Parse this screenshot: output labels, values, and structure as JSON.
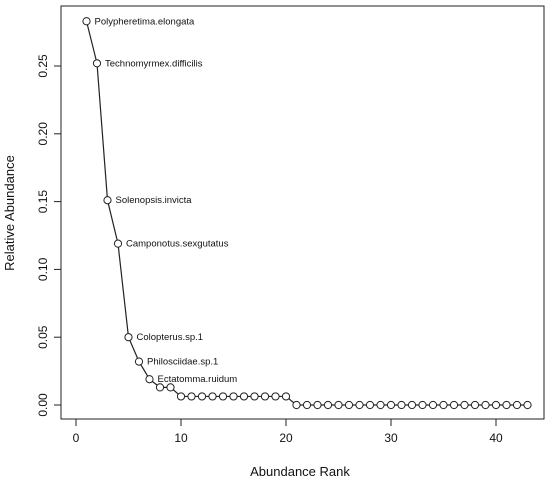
{
  "chart_data": {
    "type": "line",
    "xlabel": "Abundance Rank",
    "ylabel": "Relative Abundance",
    "x_ticks": [
      "0",
      "10",
      "20",
      "30",
      "40"
    ],
    "y_ticks": [
      "0.00",
      "0.05",
      "0.10",
      "0.15",
      "0.20",
      "0.25"
    ],
    "xlim": [
      0,
      44
    ],
    "ylim": [
      0,
      0.285
    ],
    "grid": false,
    "series": [
      {
        "x": [
          1,
          2,
          3,
          4,
          5,
          6,
          7,
          8,
          9,
          10,
          11,
          12,
          13,
          14,
          15,
          16,
          17,
          18,
          19,
          20,
          21,
          22,
          23,
          24,
          25,
          26,
          27,
          28,
          29,
          30,
          31,
          32,
          33,
          34,
          35,
          36,
          37,
          38,
          39,
          40,
          41,
          42,
          43
        ],
        "y": [
          0.283,
          0.252,
          0.151,
          0.119,
          0.05,
          0.032,
          0.019,
          0.013,
          0.013,
          0.0063,
          0.0063,
          0.0063,
          0.0063,
          0.0063,
          0.0063,
          0.0063,
          0.0063,
          0.0063,
          0.0063,
          0.0063,
          0.0,
          0.0,
          0.0,
          0.0,
          0.0,
          0.0,
          0.0,
          0.0,
          0.0,
          0.0,
          0.0,
          0.0,
          0.0,
          0.0,
          0.0,
          0.0,
          0.0,
          0.0,
          0.0,
          0.0,
          0.0,
          0.0,
          0.0
        ]
      }
    ],
    "annotations": [
      {
        "text": "Polypheretima.elongata",
        "x": 1,
        "y": 0.283
      },
      {
        "text": "Technomyrmex.difficilis",
        "x": 2,
        "y": 0.252
      },
      {
        "text": "Solenopsis.invicta",
        "x": 3,
        "y": 0.151
      },
      {
        "text": "Camponotus.sexgutatus",
        "x": 4,
        "y": 0.119
      },
      {
        "text": "Colopterus.sp.1",
        "x": 5,
        "y": 0.05
      },
      {
        "text": "Philosciidae.sp.1",
        "x": 6,
        "y": 0.032
      },
      {
        "text": "Ectatomma.ruidum",
        "x": 7,
        "y": 0.019
      }
    ]
  }
}
